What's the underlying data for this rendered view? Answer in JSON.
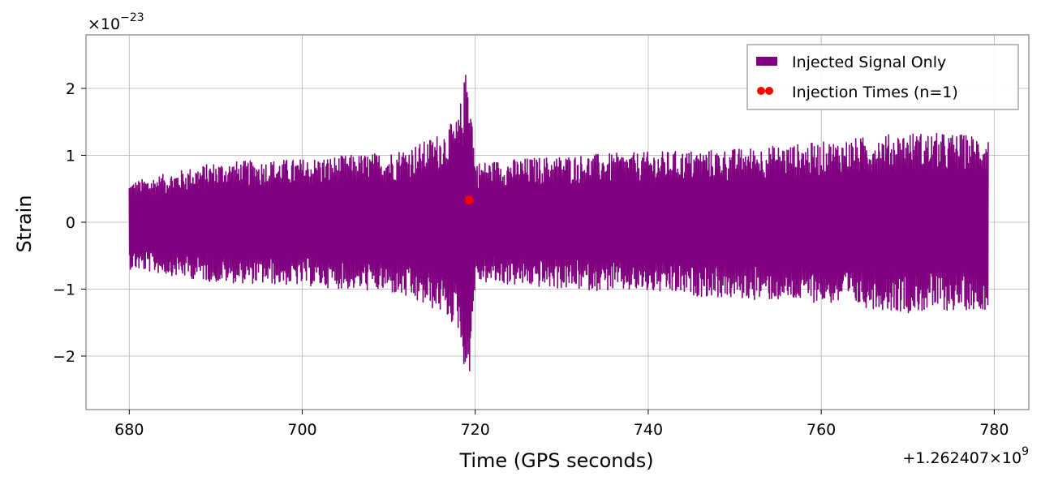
{
  "chart_data": {
    "type": "line",
    "xlabel": "Time (GPS seconds)",
    "ylabel": "Strain",
    "x_offset_label": "+1.262407×10",
    "x_offset_exponent": "9",
    "y_scale_label": "×10",
    "y_scale_exponent": "−23",
    "xlim": [
      675,
      784
    ],
    "ylim": [
      -2.8,
      2.8
    ],
    "xticks": [
      680,
      700,
      720,
      740,
      760,
      780
    ],
    "xtick_labels": [
      "680",
      "700",
      "720",
      "740",
      "760",
      "780"
    ],
    "yticks": [
      2,
      1,
      0,
      -1,
      -2
    ],
    "ytick_labels": [
      "2",
      "1",
      "0",
      "−1",
      "−2"
    ],
    "grid": true,
    "legend_placement": "top-right",
    "series": [
      {
        "name": "Injected Signal Only",
        "kind": "line",
        "color": "#800080",
        "x_range": [
          680,
          779.3
        ],
        "envelope": [
          {
            "x": 680,
            "max": 0.6,
            "min": -0.7
          },
          {
            "x": 690,
            "max": 0.9,
            "min": -0.9
          },
          {
            "x": 700,
            "max": 0.95,
            "min": -0.95
          },
          {
            "x": 705,
            "max": 1.0,
            "min": -1.0
          },
          {
            "x": 710,
            "max": 1.05,
            "min": -1.05
          },
          {
            "x": 714,
            "max": 1.2,
            "min": -1.25
          },
          {
            "x": 716,
            "max": 1.35,
            "min": -1.35
          },
          {
            "x": 718,
            "max": 1.55,
            "min": -1.6
          },
          {
            "x": 719.2,
            "max": 2.5,
            "min": -2.55
          },
          {
            "x": 720,
            "max": 0.9,
            "min": -0.9
          },
          {
            "x": 730,
            "max": 1.0,
            "min": -1.0
          },
          {
            "x": 740,
            "max": 1.05,
            "min": -1.05
          },
          {
            "x": 750,
            "max": 1.1,
            "min": -1.15
          },
          {
            "x": 760,
            "max": 1.2,
            "min": -1.2
          },
          {
            "x": 770,
            "max": 1.35,
            "min": -1.35
          },
          {
            "x": 779.3,
            "max": 1.3,
            "min": -1.3
          }
        ]
      },
      {
        "name": "Injection Times (n=1)",
        "kind": "scatter",
        "color": "#ff0000",
        "points": [
          {
            "x": 719.3,
            "y": 0.33
          }
        ]
      }
    ]
  }
}
